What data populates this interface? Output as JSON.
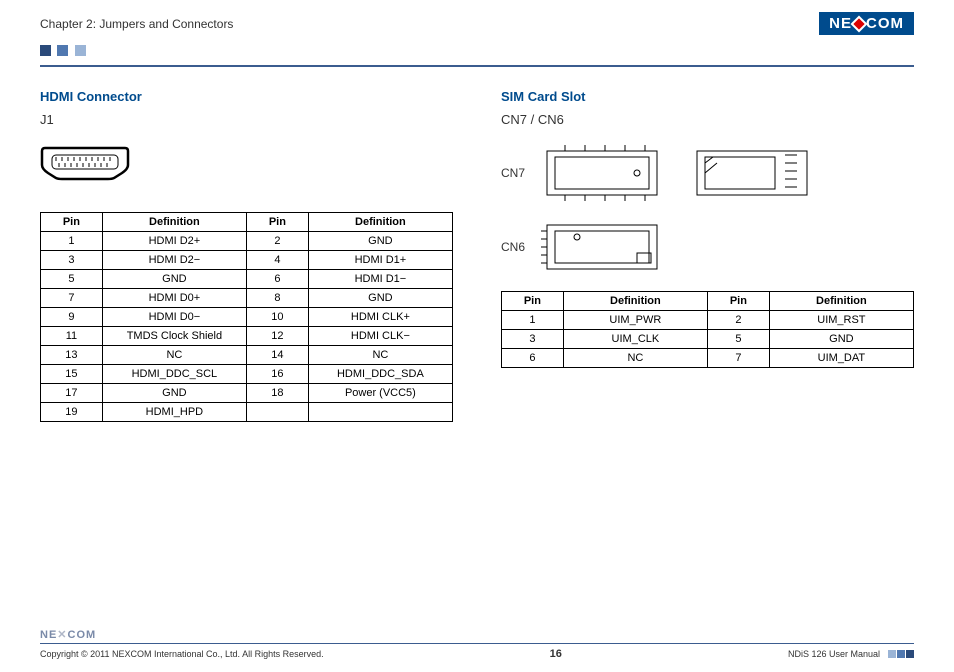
{
  "header": {
    "chapter_title": "Chapter 2: Jumpers and Connectors",
    "logo_text_left": "NE",
    "logo_text_right": "COM"
  },
  "accent_squares": {
    "colors": [
      "#2a4a7a",
      "#5078b0",
      "#9ab4d6"
    ]
  },
  "left_section": {
    "title": "HDMI Connector",
    "subtitle": "J1",
    "table": {
      "columns": [
        "Pin",
        "Definition",
        "Pin",
        "Definition"
      ],
      "rows": [
        [
          "1",
          "HDMI D2+",
          "2",
          "GND"
        ],
        [
          "3",
          "HDMI D2−",
          "4",
          "HDMI D1+"
        ],
        [
          "5",
          "GND",
          "6",
          "HDMI D1−"
        ],
        [
          "7",
          "HDMI D0+",
          "8",
          "GND"
        ],
        [
          "9",
          "HDMI D0−",
          "10",
          "HDMI CLK+"
        ],
        [
          "11",
          "TMDS Clock Shield",
          "12",
          "HDMI CLK−"
        ],
        [
          "13",
          "NC",
          "14",
          "NC"
        ],
        [
          "15",
          "HDMI_DDC_SCL",
          "16",
          "HDMI_DDC_SDA"
        ],
        [
          "17",
          "GND",
          "18",
          "Power (VCC5)"
        ],
        [
          "19",
          "HDMI_HPD",
          "",
          ""
        ]
      ]
    }
  },
  "right_section": {
    "title": "SIM Card Slot",
    "subtitle": "CN7 / CN6",
    "label_cn7": "CN7",
    "label_cn6": "CN6",
    "table": {
      "columns": [
        "Pin",
        "Definition",
        "Pin",
        "Definition"
      ],
      "rows": [
        [
          "1",
          "UIM_PWR",
          "2",
          "UIM_RST"
        ],
        [
          "3",
          "UIM_CLK",
          "5",
          "GND"
        ],
        [
          "6",
          "NC",
          "7",
          "UIM_DAT"
        ]
      ]
    }
  },
  "footer": {
    "logo_text": "NE COM",
    "copyright": "Copyright © 2011 NEXCOM International Co., Ltd. All Rights Reserved.",
    "page_number": "16",
    "manual_name": "NDiS 126 User Manual"
  },
  "colors": {
    "brand_blue": "#004b8d",
    "rule_blue": "#3b5c8f",
    "logo_red": "#d00"
  }
}
